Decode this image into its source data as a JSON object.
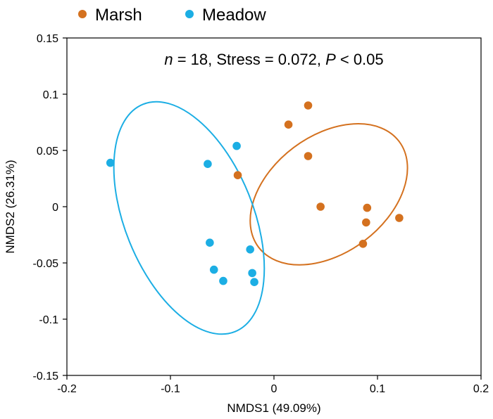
{
  "chart_data": {
    "type": "scatter",
    "title": "",
    "xlabel": "NMDS1 (49.09%)",
    "ylabel": "NMDS2 (26.31%)",
    "xlim": [
      -0.2,
      0.2
    ],
    "ylim": [
      -0.15,
      0.15
    ],
    "xticks": [
      -0.2,
      -0.1,
      0,
      0.1,
      0.2
    ],
    "yticks": [
      -0.15,
      -0.1,
      -0.05,
      0,
      0.05,
      0.1,
      0.15
    ],
    "xtick_labels": [
      "-0.2",
      "-0.1",
      "0",
      "0.1",
      "0.2"
    ],
    "ytick_labels": [
      "-0.15",
      "-0.1",
      "-0.05",
      "0",
      "0.05",
      "0.1",
      "0.15"
    ],
    "grid": false,
    "legend_position": "top-left, above plot",
    "annotation": {
      "parts": [
        {
          "text": "n",
          "italic": true
        },
        {
          "text": " = 18, Stress = 0.072, ",
          "italic": false
        },
        {
          "text": "P",
          "italic": true
        },
        {
          "text": " < 0.05",
          "italic": false
        }
      ]
    },
    "series": [
      {
        "name": "Marsh",
        "color": "#D4711F",
        "points": [
          {
            "x": 0.033,
            "y": 0.09
          },
          {
            "x": 0.014,
            "y": 0.073
          },
          {
            "x": 0.033,
            "y": 0.045
          },
          {
            "x": -0.035,
            "y": 0.028
          },
          {
            "x": 0.045,
            "y": 0.0
          },
          {
            "x": 0.09,
            "y": -0.001
          },
          {
            "x": 0.121,
            "y": -0.01
          },
          {
            "x": 0.089,
            "y": -0.014
          },
          {
            "x": 0.086,
            "y": -0.033
          }
        ],
        "ellipse": {
          "cx": 0.053,
          "cy": 0.011,
          "rx": 0.085,
          "ry": 0.052,
          "angle_deg": -37
        }
      },
      {
        "name": "Meadow",
        "color": "#1CAEE4",
        "points": [
          {
            "x": -0.158,
            "y": 0.039
          },
          {
            "x": -0.064,
            "y": 0.038
          },
          {
            "x": -0.036,
            "y": 0.054
          },
          {
            "x": -0.062,
            "y": -0.032
          },
          {
            "x": -0.058,
            "y": -0.056
          },
          {
            "x": -0.049,
            "y": -0.066
          },
          {
            "x": -0.023,
            "y": -0.038
          },
          {
            "x": -0.021,
            "y": -0.059
          },
          {
            "x": -0.019,
            "y": -0.067
          }
        ],
        "ellipse": {
          "cx": -0.082,
          "cy": -0.01,
          "rx": 0.062,
          "ry": 0.109,
          "angle_deg": -22
        }
      }
    ]
  }
}
